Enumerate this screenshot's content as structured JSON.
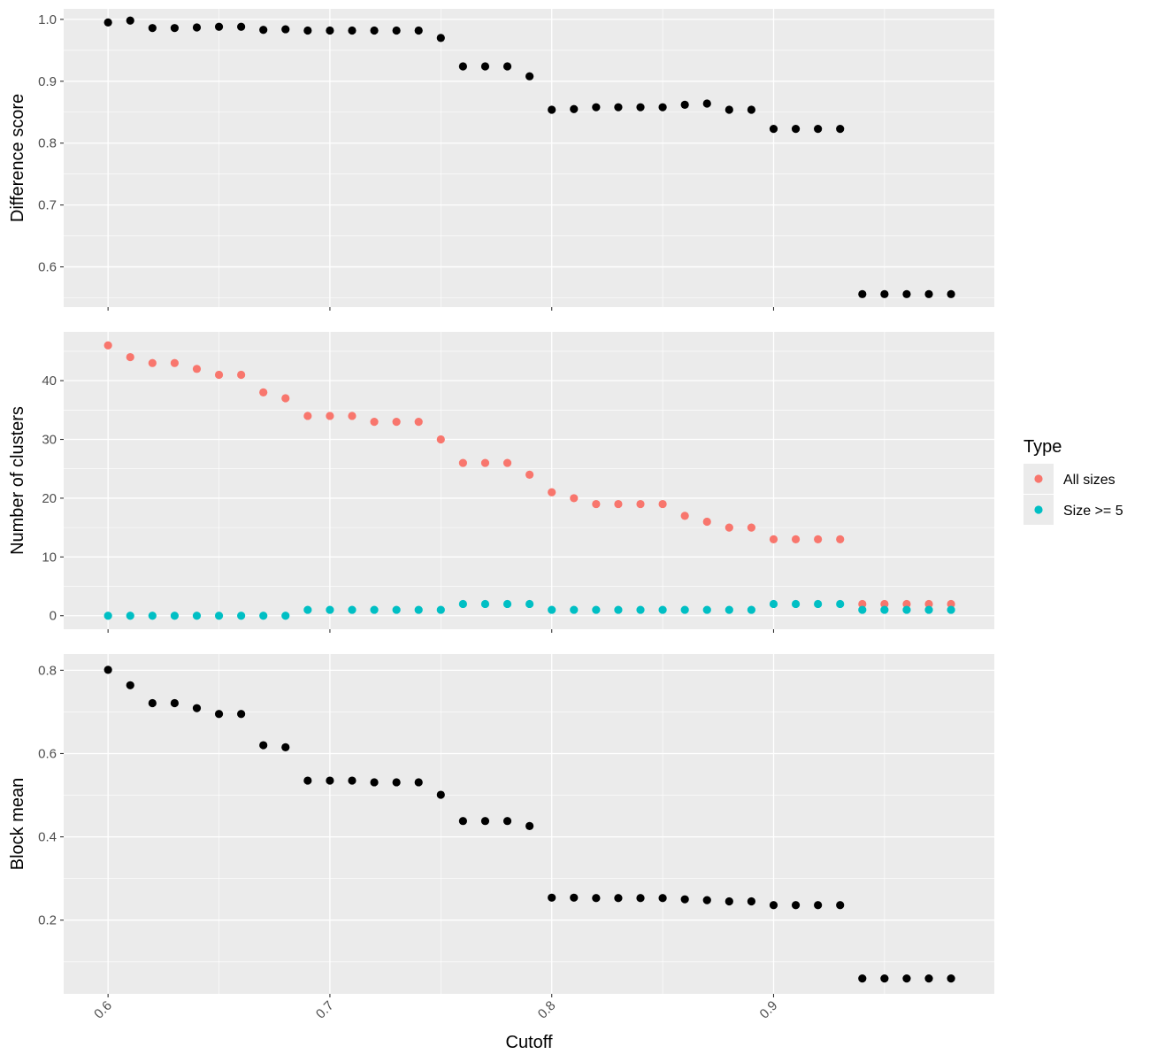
{
  "chart_data": {
    "type": "scatter",
    "x_title": "Cutoff",
    "x": [
      0.6,
      0.61,
      0.62,
      0.63,
      0.64,
      0.65,
      0.66,
      0.67,
      0.68,
      0.69,
      0.7,
      0.71,
      0.72,
      0.73,
      0.74,
      0.75,
      0.76,
      0.77,
      0.78,
      0.79,
      0.8,
      0.81,
      0.82,
      0.83,
      0.84,
      0.85,
      0.86,
      0.87,
      0.88,
      0.89,
      0.9,
      0.91,
      0.92,
      0.93,
      0.94,
      0.95,
      0.96,
      0.97,
      0.98
    ],
    "xlim": [
      0.58,
      0.9995
    ],
    "x_ticks": [
      0.6,
      0.7,
      0.8,
      0.9
    ],
    "x_tick_labels": [
      "0.6",
      "0.7",
      "0.8",
      "0.9"
    ],
    "panels": [
      {
        "ylabel": "Difference score",
        "ylim": [
          0.535,
          1.017
        ],
        "y_ticks": [
          0.6,
          0.7,
          0.8,
          0.9,
          1.0
        ],
        "y_tick_labels": [
          "0.6",
          "0.7",
          "0.8",
          "0.9",
          "1.0"
        ],
        "series": [
          {
            "color": "#000000",
            "values": [
              0.995,
              0.998,
              0.986,
              0.986,
              0.987,
              0.988,
              0.988,
              0.983,
              0.984,
              0.982,
              0.982,
              0.982,
              0.982,
              0.982,
              0.982,
              0.97,
              0.924,
              0.924,
              0.924,
              0.908,
              0.854,
              0.855,
              0.858,
              0.858,
              0.858,
              0.858,
              0.862,
              0.864,
              0.854,
              0.854,
              0.823,
              0.823,
              0.823,
              0.823,
              0.556,
              0.556,
              0.556,
              0.556,
              0.556
            ]
          }
        ]
      },
      {
        "ylabel": "Number of clusters",
        "ylim": [
          -2.3,
          48.3
        ],
        "y_ticks": [
          0,
          10,
          20,
          30,
          40
        ],
        "y_tick_labels": [
          "0",
          "10",
          "20",
          "30",
          "40"
        ],
        "series": [
          {
            "name": "All sizes",
            "color": "#F8766D",
            "values": [
              46,
              44,
              43,
              43,
              42,
              41,
              41,
              38,
              37,
              34,
              34,
              34,
              33,
              33,
              33,
              30,
              26,
              26,
              26,
              24,
              21,
              20,
              19,
              19,
              19,
              19,
              17,
              16,
              15,
              15,
              13,
              13,
              13,
              13,
              2,
              2,
              2,
              2,
              2
            ]
          },
          {
            "name": "Size >= 5",
            "color": "#00BFC4",
            "values": [
              0,
              0,
              0,
              0,
              0,
              0,
              0,
              0,
              0,
              1,
              1,
              1,
              1,
              1,
              1,
              1,
              2,
              2,
              2,
              2,
              1,
              1,
              1,
              1,
              1,
              1,
              1,
              1,
              1,
              1,
              2,
              2,
              2,
              2,
              1,
              1,
              1,
              1,
              1
            ]
          }
        ]
      },
      {
        "ylabel": "Block mean",
        "ylim": [
          0.023,
          0.839
        ],
        "y_ticks": [
          0.2,
          0.4,
          0.6,
          0.8
        ],
        "y_tick_labels": [
          "0.2",
          "0.4",
          "0.6",
          "0.8"
        ],
        "series": [
          {
            "color": "#000000",
            "values": [
              0.801,
              0.764,
              0.721,
              0.721,
              0.709,
              0.695,
              0.695,
              0.62,
              0.615,
              0.535,
              0.535,
              0.535,
              0.531,
              0.531,
              0.531,
              0.501,
              0.438,
              0.438,
              0.438,
              0.426,
              0.254,
              0.254,
              0.253,
              0.253,
              0.253,
              0.253,
              0.25,
              0.248,
              0.245,
              0.245,
              0.236,
              0.236,
              0.236,
              0.236,
              0.06,
              0.06,
              0.06,
              0.06,
              0.06
            ]
          }
        ]
      }
    ],
    "legend": {
      "title": "Type",
      "position": "right",
      "items": [
        {
          "label": "All sizes",
          "color": "#F8766D"
        },
        {
          "label": "Size >= 5",
          "color": "#00BFC4"
        }
      ]
    },
    "grid": true,
    "panel_background": "#EBEBEB"
  }
}
